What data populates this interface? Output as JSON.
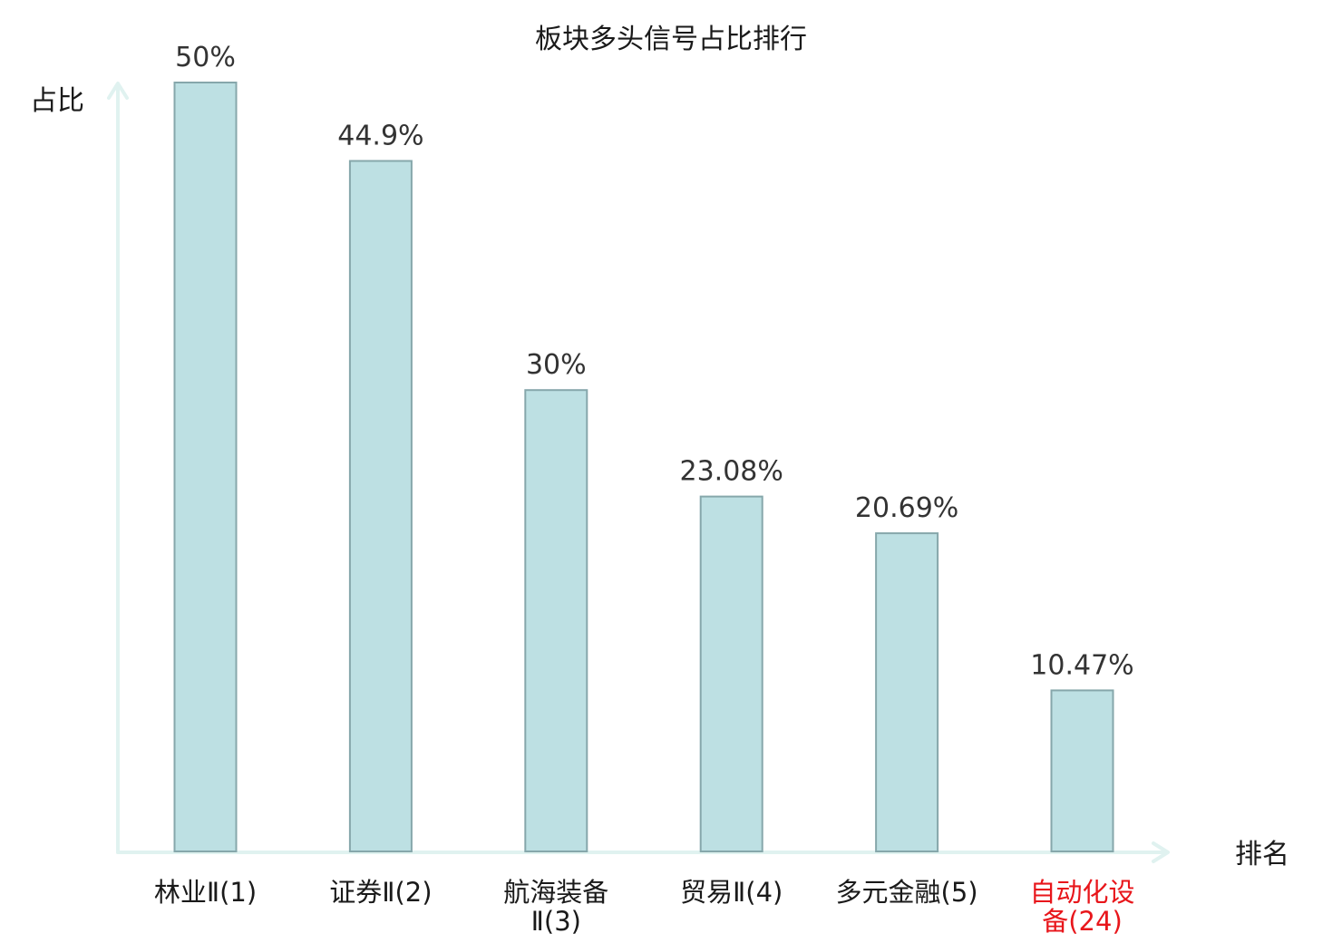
{
  "chart_data": {
    "type": "bar",
    "title": "板块多头信号占比排行",
    "ylabel": "占比",
    "xlabel": "排名",
    "ylim": [
      0,
      50
    ],
    "categories": [
      {
        "lines": [
          "林业Ⅱ(1)"
        ],
        "highlight": false
      },
      {
        "lines": [
          "证券Ⅱ(2)"
        ],
        "highlight": false
      },
      {
        "lines": [
          "航海装备",
          "Ⅱ(3)"
        ],
        "highlight": false
      },
      {
        "lines": [
          "贸易Ⅱ(4)"
        ],
        "highlight": false
      },
      {
        "lines": [
          "多元金融(5)"
        ],
        "highlight": false
      },
      {
        "lines": [
          "自动化设",
          "备(24)"
        ],
        "highlight": true
      }
    ],
    "values": [
      50,
      44.9,
      30,
      23.08,
      20.69,
      10.47
    ],
    "value_labels": [
      "50%",
      "44.9%",
      "30%",
      "23.08%",
      "20.69%",
      "10.47%"
    ],
    "legend": "none",
    "grid": false
  },
  "colors": {
    "bar_fill": "#bde0e3",
    "bar_stroke": "#86a7ab",
    "axis": "#e0f2f0",
    "label_normal": "#1a1a1a",
    "label_highlight": "#e8161b"
  }
}
